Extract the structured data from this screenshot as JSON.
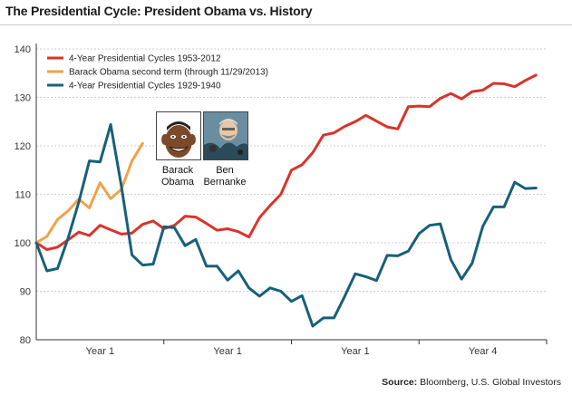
{
  "title": "The Presidential Cycle: President Obama vs. History",
  "source": {
    "label": "Source:",
    "text": "Bloomberg, U.S. Global Investors"
  },
  "portraits": [
    {
      "icon": "barack-obama-caricature",
      "caption_line1": "Barack",
      "caption_line2": "Obama"
    },
    {
      "icon": "ben-bernanke-caricature",
      "caption_line1": "Ben",
      "caption_line2": "Bernanke"
    }
  ],
  "chart_data": {
    "type": "line",
    "title": "The Presidential Cycle: President Obama vs. History",
    "xlabel": "",
    "ylabel": "",
    "ylim": [
      80,
      140
    ],
    "yticks": [
      80,
      90,
      100,
      110,
      120,
      130,
      140
    ],
    "xlim": [
      0,
      48
    ],
    "x_tick_labels": [
      {
        "label": "Year 1",
        "pos": 6
      },
      {
        "label": "Year 1",
        "pos": 18
      },
      {
        "label": "Year 1",
        "pos": 30
      },
      {
        "label": "Year 4",
        "pos": 42
      }
    ],
    "x_minor_ticks": [
      12,
      24,
      36,
      48
    ],
    "grid": true,
    "legend_position": "top-left",
    "series": [
      {
        "name": "4-Year Presidential Cycles 1953-2012",
        "color": "#d9342b",
        "values": [
          100,
          98.6,
          99.1,
          100.6,
          102.2,
          101.5,
          103.6,
          102.7,
          101.8,
          102.0,
          103.8,
          104.5,
          102.9,
          103.6,
          105.5,
          105.3,
          104.0,
          102.6,
          102.9,
          102.3,
          101.2,
          105.2,
          107.7,
          110.0,
          115.0,
          116.1,
          118.6,
          122.2,
          122.7,
          124.0,
          125.0,
          126.3,
          125.1,
          123.9,
          123.5,
          128.1,
          128.2,
          128.1,
          129.8,
          130.8,
          129.7,
          131.2,
          131.5,
          132.9,
          132.8,
          132.2,
          133.5,
          134.6
        ]
      },
      {
        "name": "Barack Obama second term (through 11/29/2013)",
        "color": "#f0a24a",
        "values": [
          100,
          101.3,
          104.8,
          106.6,
          109.0,
          107.2,
          112.4,
          109.1,
          111.0,
          116.9,
          120.5
        ]
      },
      {
        "name": "4-Year Presidential Cycles 1929-1940",
        "color": "#17607a",
        "values": [
          100,
          94.2,
          94.7,
          101.0,
          108.4,
          116.9,
          116.7,
          124.4,
          111.8,
          97.5,
          95.4,
          95.6,
          103.3,
          103.1,
          99.4,
          100.7,
          95.2,
          95.2,
          92.3,
          94.2,
          90.7,
          89.0,
          90.7,
          90.0,
          87.9,
          89.1,
          82.8,
          84.5,
          84.5,
          88.9,
          93.6,
          93.0,
          92.2,
          97.4,
          97.3,
          98.3,
          101.9,
          103.6,
          103.9,
          96.5,
          92.5,
          95.8,
          103.4,
          107.4,
          107.4,
          112.5,
          111.2,
          111.3
        ]
      }
    ]
  }
}
